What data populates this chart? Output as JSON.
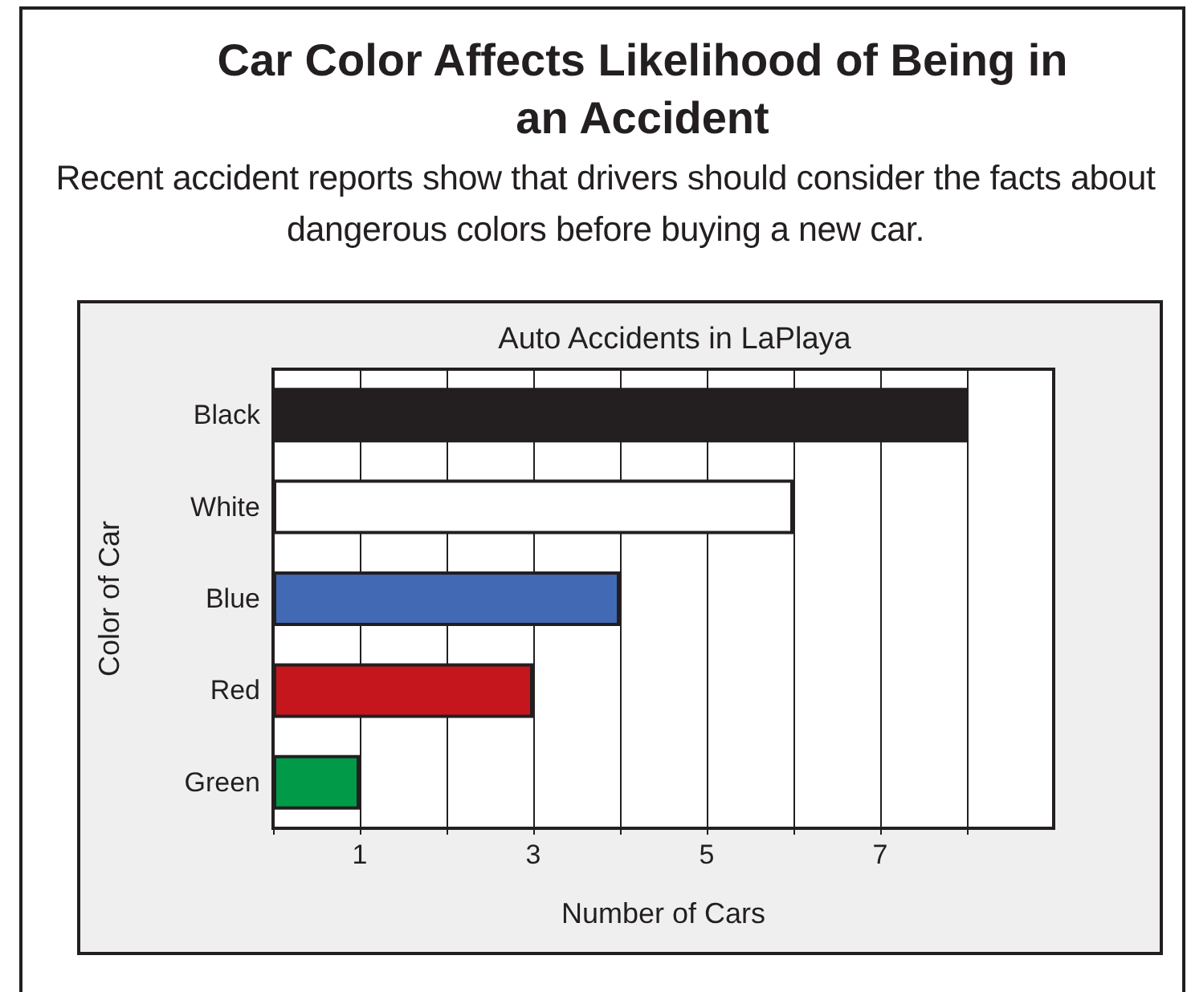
{
  "chart_data": {
    "type": "bar",
    "orientation": "horizontal",
    "title": "Car Color Affects Likelihood of Being in an Accident",
    "subtitle": "Recent accident reports show that drivers should consider the facts about dangerous colors before buying a new car.",
    "annotations": [
      "Auto Accidents in LaPlaya"
    ],
    "xlabel": "Number of Cars",
    "ylabel": "Color of Car",
    "categories": [
      "Black",
      "White",
      "Blue",
      "Red",
      "Green"
    ],
    "values": [
      8,
      6,
      4,
      3,
      1
    ],
    "colors": [
      "#231f20",
      "#ffffff",
      "#4169b4",
      "#c4161c",
      "#009a49"
    ],
    "xlim": [
      0,
      9
    ],
    "xticks": [
      {
        "value": 0,
        "label": null
      },
      1,
      {
        "value": 2,
        "label": null
      },
      3,
      {
        "value": 4,
        "label": null
      },
      5,
      {
        "value": 6,
        "label": null
      },
      7,
      {
        "value": 8,
        "label": null
      }
    ],
    "grid": "x"
  }
}
